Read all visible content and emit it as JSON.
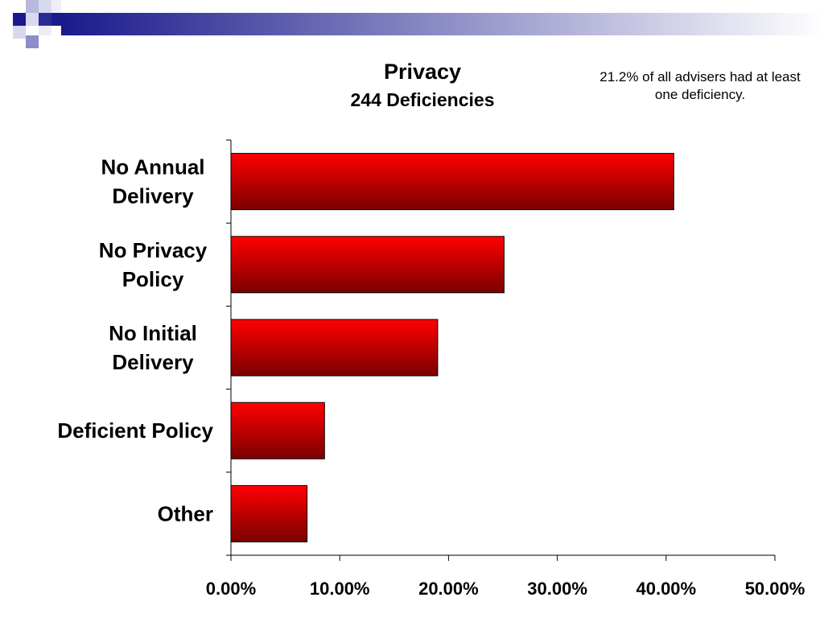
{
  "slide": {
    "title": "Privacy",
    "subtitle": "244 Deficiencies",
    "note": "21.2% of all advisers had at least one deficiency."
  },
  "colors": {
    "bar_top": "#ff0000",
    "bar_bottom": "#7a0000",
    "header_dark": "#1a1a8c",
    "header_light": "#ffffff"
  },
  "chart_data": {
    "type": "bar",
    "orientation": "horizontal",
    "title": "Privacy",
    "subtitle": "244 Deficiencies",
    "categories": [
      [
        "No Annual",
        "Delivery"
      ],
      [
        "No Privacy",
        "Policy"
      ],
      [
        "No Initial",
        "Delivery"
      ],
      [
        "Deficient Policy"
      ],
      [
        "Other"
      ]
    ],
    "values": [
      40.7,
      25.1,
      19.0,
      8.6,
      7.0
    ],
    "unit": "%",
    "xlim": [
      0,
      50
    ],
    "xticks": [
      "0.00%",
      "10.00%",
      "20.00%",
      "30.00%",
      "40.00%",
      "50.00%"
    ],
    "grid": false,
    "legend": "none"
  }
}
